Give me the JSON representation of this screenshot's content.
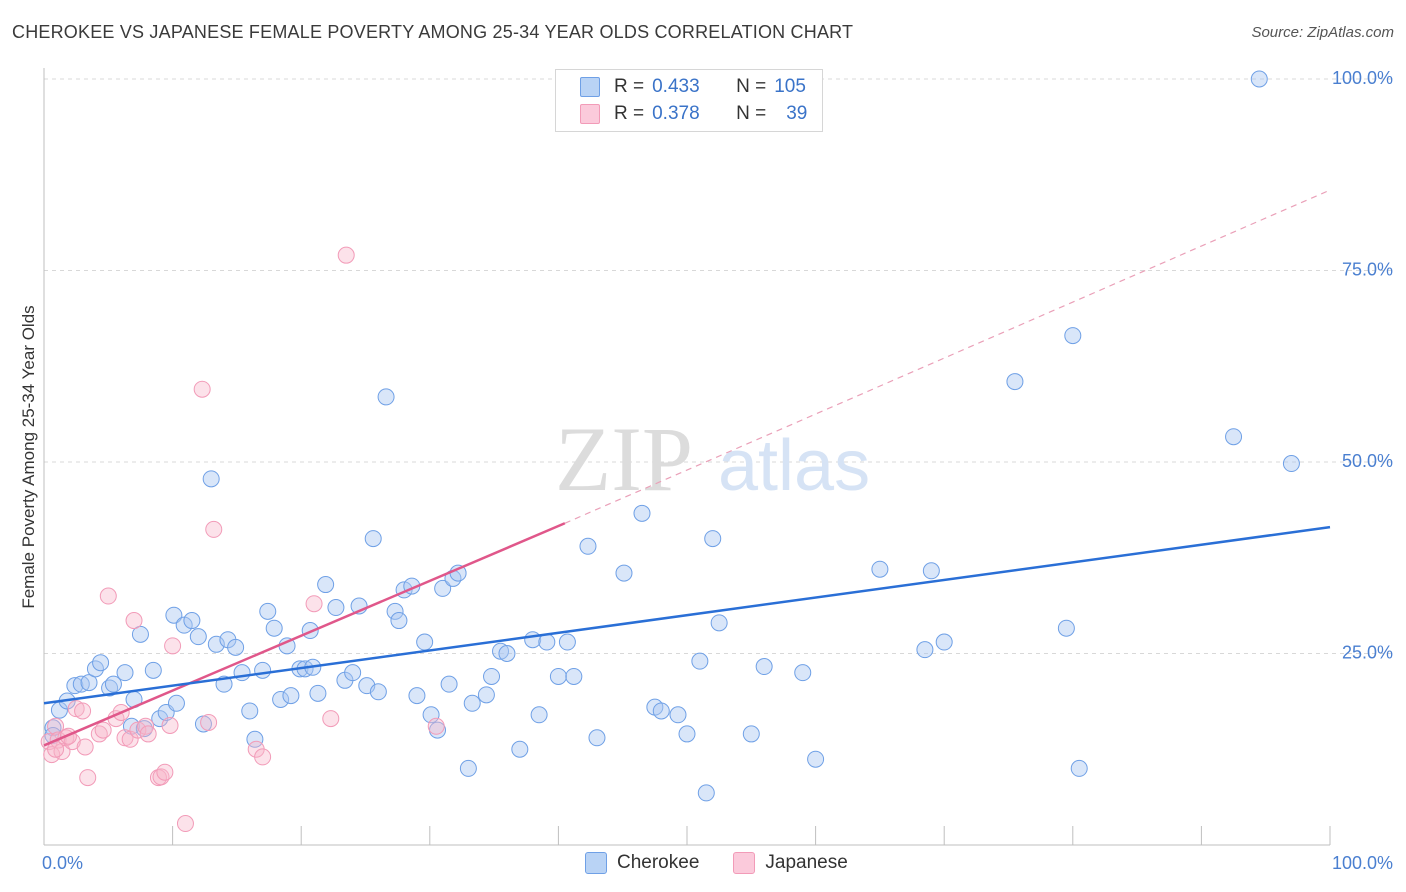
{
  "title": "CHEROKEE VS JAPANESE FEMALE POVERTY AMONG 25-34 YEAR OLDS CORRELATION CHART",
  "source": "Source: ZipAtlas.com",
  "watermark": {
    "zip": "ZIP",
    "atlas": "atlas"
  },
  "legend": {
    "rows": [
      {
        "r_label": "R =",
        "r": "0.433",
        "n_label": "N =",
        "n": "105",
        "color": "#a9c8f2"
      },
      {
        "r_label": "R =",
        "r": "0.378",
        "n_label": "N =",
        "n": "39",
        "color": "#f7b6cb"
      }
    ]
  },
  "bottom_legend": [
    {
      "label": "Cherokee",
      "color": "#a9c8f2"
    },
    {
      "label": "Japanese",
      "color": "#f7b6cb"
    }
  ],
  "colors": {
    "cherokee": "#6fa0e6",
    "cherokee_line": "#2a6fd6",
    "japanese": "#f29bb8",
    "japanese_line": "#e0578a",
    "grid": "#d8d8d8",
    "tick_text": "#4a7fd0"
  },
  "chart_data": {
    "type": "scatter",
    "title": "CHEROKEE VS JAPANESE FEMALE POVERTY AMONG 25-34 YEAR OLDS CORRELATION CHART",
    "xlabel": "",
    "ylabel": "Female Poverty Among 25-34 Year Olds",
    "xlim": [
      0,
      100
    ],
    "ylim": [
      0,
      100
    ],
    "x_tick_labels": [
      "0.0%",
      "100.0%"
    ],
    "y_ticks": [
      25,
      50,
      75,
      100
    ],
    "y_tick_labels": [
      "25.0%",
      "50.0%",
      "75.0%",
      "100.0%"
    ],
    "grid": "horizontal dashed",
    "legend_position": "top-center",
    "series": [
      {
        "name": "Cherokee",
        "r": 0.433,
        "n": 105,
        "trend": {
          "x": [
            0,
            100
          ],
          "y": [
            18.5,
            41.5
          ],
          "style": "solid"
        },
        "points": [
          [
            0.7,
            15.3
          ],
          [
            1.2,
            17.6
          ],
          [
            1.8,
            18.8
          ],
          [
            2.4,
            20.8
          ],
          [
            2.9,
            21.0
          ],
          [
            3.5,
            21.2
          ],
          [
            4.0,
            23.0
          ],
          [
            4.4,
            23.8
          ],
          [
            5.1,
            20.5
          ],
          [
            5.4,
            21.0
          ],
          [
            6.3,
            22.5
          ],
          [
            6.8,
            15.5
          ],
          [
            7.0,
            19.0
          ],
          [
            7.5,
            27.5
          ],
          [
            7.8,
            15.2
          ],
          [
            8.5,
            22.8
          ],
          [
            9.0,
            16.5
          ],
          [
            9.5,
            17.3
          ],
          [
            10.1,
            30.0
          ],
          [
            10.3,
            18.5
          ],
          [
            10.9,
            28.7
          ],
          [
            11.5,
            29.3
          ],
          [
            12.0,
            27.2
          ],
          [
            12.4,
            15.8
          ],
          [
            13.0,
            47.8
          ],
          [
            13.4,
            26.2
          ],
          [
            14.0,
            21.0
          ],
          [
            14.3,
            26.8
          ],
          [
            14.9,
            25.8
          ],
          [
            15.4,
            22.5
          ],
          [
            16.0,
            17.5
          ],
          [
            16.4,
            13.8
          ],
          [
            17.0,
            22.8
          ],
          [
            17.4,
            30.5
          ],
          [
            17.9,
            28.3
          ],
          [
            18.4,
            19.0
          ],
          [
            18.9,
            26.0
          ],
          [
            19.2,
            19.5
          ],
          [
            19.9,
            23.0
          ],
          [
            20.3,
            23.0
          ],
          [
            20.7,
            28.0
          ],
          [
            20.9,
            23.2
          ],
          [
            21.3,
            19.8
          ],
          [
            21.9,
            34.0
          ],
          [
            22.7,
            31.0
          ],
          [
            23.4,
            21.5
          ],
          [
            24.0,
            22.5
          ],
          [
            24.5,
            31.2
          ],
          [
            25.1,
            20.8
          ],
          [
            25.6,
            40.0
          ],
          [
            26.0,
            20.0
          ],
          [
            26.6,
            58.5
          ],
          [
            27.3,
            30.5
          ],
          [
            27.6,
            29.3
          ],
          [
            28.0,
            33.3
          ],
          [
            28.6,
            33.8
          ],
          [
            29.0,
            19.5
          ],
          [
            29.6,
            26.5
          ],
          [
            30.1,
            17.0
          ],
          [
            30.6,
            15.0
          ],
          [
            31.0,
            33.5
          ],
          [
            31.5,
            21.0
          ],
          [
            31.8,
            34.8
          ],
          [
            32.2,
            35.5
          ],
          [
            33.0,
            10.0
          ],
          [
            33.3,
            18.5
          ],
          [
            34.4,
            19.6
          ],
          [
            34.8,
            22.0
          ],
          [
            35.5,
            25.3
          ],
          [
            36.0,
            25.0
          ],
          [
            37.0,
            12.5
          ],
          [
            38.0,
            26.8
          ],
          [
            38.5,
            17.0
          ],
          [
            39.1,
            26.5
          ],
          [
            40.0,
            22.0
          ],
          [
            40.7,
            26.5
          ],
          [
            41.2,
            22.0
          ],
          [
            42.3,
            39.0
          ],
          [
            43.0,
            14.0
          ],
          [
            45.1,
            35.5
          ],
          [
            46.5,
            43.3
          ],
          [
            47.5,
            18.0
          ],
          [
            48.0,
            17.5
          ],
          [
            49.3,
            17.0
          ],
          [
            50.0,
            14.5
          ],
          [
            51.0,
            24.0
          ],
          [
            51.5,
            6.8
          ],
          [
            52.0,
            40.0
          ],
          [
            52.5,
            29.0
          ],
          [
            55.0,
            14.5
          ],
          [
            56.0,
            23.3
          ],
          [
            59.0,
            22.5
          ],
          [
            60.0,
            11.2
          ],
          [
            65.0,
            36.0
          ],
          [
            68.5,
            25.5
          ],
          [
            69.0,
            35.8
          ],
          [
            70.0,
            26.5
          ],
          [
            75.5,
            60.5
          ],
          [
            79.5,
            28.3
          ],
          [
            80.0,
            66.5
          ],
          [
            80.5,
            10.0
          ],
          [
            92.5,
            53.3
          ],
          [
            97.0,
            49.8
          ],
          [
            94.5,
            100.0
          ],
          [
            0.7,
            14.3
          ]
        ]
      },
      {
        "name": "Japanese",
        "r": 0.378,
        "n": 39,
        "trend": {
          "x": [
            0,
            40.5
          ],
          "y": [
            13.0,
            42.0
          ],
          "style": "solid",
          "extended": {
            "x": [
              40.5,
              100
            ],
            "y": [
              42.0,
              85.5
            ],
            "style": "dashed"
          }
        },
        "points": [
          [
            0.4,
            13.5
          ],
          [
            0.6,
            11.8
          ],
          [
            0.9,
            15.5
          ],
          [
            1.1,
            13.7
          ],
          [
            1.4,
            12.2
          ],
          [
            1.7,
            14.0
          ],
          [
            2.2,
            13.5
          ],
          [
            2.5,
            17.8
          ],
          [
            3.0,
            17.5
          ],
          [
            3.2,
            12.8
          ],
          [
            3.4,
            8.8
          ],
          [
            4.3,
            14.5
          ],
          [
            4.6,
            15.0
          ],
          [
            5.0,
            32.5
          ],
          [
            5.6,
            16.5
          ],
          [
            6.0,
            17.3
          ],
          [
            6.3,
            14.0
          ],
          [
            6.7,
            13.8
          ],
          [
            7.0,
            29.3
          ],
          [
            7.3,
            15.0
          ],
          [
            7.9,
            15.5
          ],
          [
            8.1,
            14.5
          ],
          [
            8.9,
            8.8
          ],
          [
            9.1,
            8.9
          ],
          [
            9.4,
            9.5
          ],
          [
            9.8,
            15.6
          ],
          [
            10.0,
            26.0
          ],
          [
            11.0,
            2.8
          ],
          [
            12.3,
            59.5
          ],
          [
            12.8,
            16.0
          ],
          [
            13.2,
            41.2
          ],
          [
            16.5,
            12.5
          ],
          [
            17.0,
            11.5
          ],
          [
            21.0,
            31.5
          ],
          [
            22.3,
            16.5
          ],
          [
            23.5,
            77.0
          ],
          [
            30.5,
            15.5
          ],
          [
            0.9,
            12.5
          ],
          [
            1.9,
            14.2
          ]
        ]
      }
    ]
  }
}
